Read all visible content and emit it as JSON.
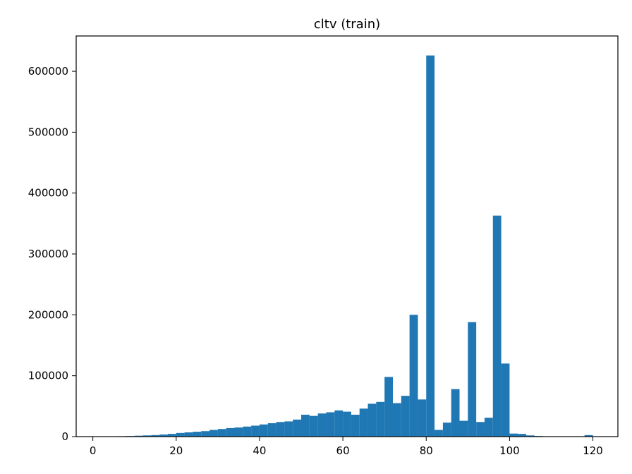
{
  "chart_data": {
    "type": "bar",
    "title": "cltv (train)",
    "xlabel": "",
    "ylabel": "",
    "xlim": [
      -4,
      126
    ],
    "ylim": [
      0,
      658000
    ],
    "xticks": [
      0,
      20,
      40,
      60,
      80,
      100,
      120
    ],
    "yticks": [
      0,
      100000,
      200000,
      300000,
      400000,
      500000,
      600000
    ],
    "bar_color": "#1f77b4",
    "grid": false,
    "bin_edges": [
      0,
      2,
      4,
      6,
      8,
      10,
      12,
      14,
      16,
      18,
      20,
      22,
      24,
      26,
      28,
      30,
      32,
      34,
      36,
      38,
      40,
      42,
      44,
      46,
      48,
      50,
      52,
      54,
      56,
      58,
      60,
      62,
      64,
      66,
      68,
      70,
      72,
      74,
      76,
      78,
      80,
      82,
      84,
      86,
      88,
      90,
      92,
      94,
      96,
      98,
      100,
      102,
      104,
      106,
      108,
      110,
      112,
      114,
      116,
      118,
      120,
      122
    ],
    "values": [
      200,
      300,
      500,
      700,
      1000,
      1500,
      2000,
      2500,
      3500,
      4500,
      6000,
      7000,
      8000,
      9000,
      11000,
      12500,
      14000,
      15000,
      16500,
      18000,
      20000,
      22000,
      24000,
      25000,
      28000,
      36000,
      34000,
      38000,
      40000,
      43000,
      41000,
      36000,
      46000,
      54000,
      57000,
      98000,
      55000,
      67000,
      200000,
      61000,
      626000,
      11000,
      23000,
      78000,
      26000,
      188000,
      24000,
      31000,
      363000,
      120000,
      5000,
      4500,
      2000,
      1000,
      500,
      300,
      200,
      100,
      100,
      2500,
      500
    ]
  }
}
